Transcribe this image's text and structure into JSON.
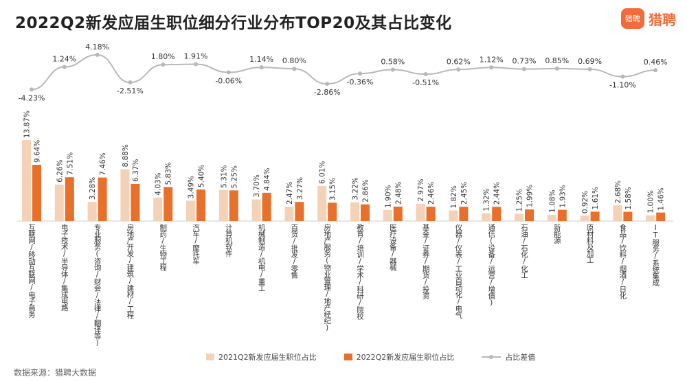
{
  "title": "2022Q2新发应届生职位细分行业分布TOP20及其占比变化",
  "logo": {
    "mark": "猎聘",
    "text": "猎聘"
  },
  "source": "数据来源：猎聘大数据",
  "colors": {
    "s2021": "#f3d2b8",
    "s2022": "#e8702a",
    "line": "#b8b8b8"
  },
  "chart_data": {
    "type": "bar",
    "title": "2022Q2新发应届生职位细分行业分布TOP20及其占比变化",
    "categories": [
      "互联网/移动互联网/电子商务",
      "电子技术/半导体/集成电路",
      "专业服务(咨询/财会/法律/翻译等)",
      "房地产开发/建筑/建材/工程",
      "制药/生物工程",
      "汽车/摩托车",
      "计算机软件",
      "机械制造/机电/重工",
      "百货/批发/零售",
      "房地产服务(物业管理/地产经纪)",
      "教育/培训/学术/科研/院校",
      "医疗设备/器械",
      "基金/证券/期货/投资",
      "仪器/仪表/工业自动化/电气",
      "通信(设备/运营/增值)",
      "石油/石化/化工",
      "新能源",
      "原材料及加工",
      "食品/饮料/烟酒/日化",
      "IT服务/系统集成"
    ],
    "series": [
      {
        "name": "2021Q2新发应届生职位占比",
        "type": "bar",
        "unit": "%",
        "values": [
          13.87,
          6.26,
          3.28,
          8.88,
          4.03,
          3.49,
          5.31,
          3.7,
          2.47,
          6.01,
          3.22,
          1.9,
          2.97,
          1.82,
          1.32,
          1.25,
          1.08,
          0.92,
          2.68,
          1.0
        ]
      },
      {
        "name": "2022Q2新发应届生职位占比",
        "type": "bar",
        "unit": "%",
        "values": [
          9.64,
          7.51,
          7.46,
          6.37,
          5.83,
          5.4,
          5.25,
          4.84,
          3.27,
          3.15,
          2.86,
          2.48,
          2.46,
          2.45,
          2.44,
          1.99,
          1.93,
          1.61,
          1.58,
          1.46
        ]
      },
      {
        "name": "占比差值",
        "type": "line",
        "unit": "%",
        "values": [
          -4.23,
          1.24,
          4.18,
          -2.51,
          1.8,
          1.91,
          -0.06,
          1.14,
          0.8,
          -2.86,
          -0.36,
          0.58,
          -0.51,
          0.62,
          1.12,
          0.73,
          0.85,
          0.69,
          -1.1,
          0.46
        ]
      }
    ],
    "legend_position": "bottom",
    "grid": false
  }
}
